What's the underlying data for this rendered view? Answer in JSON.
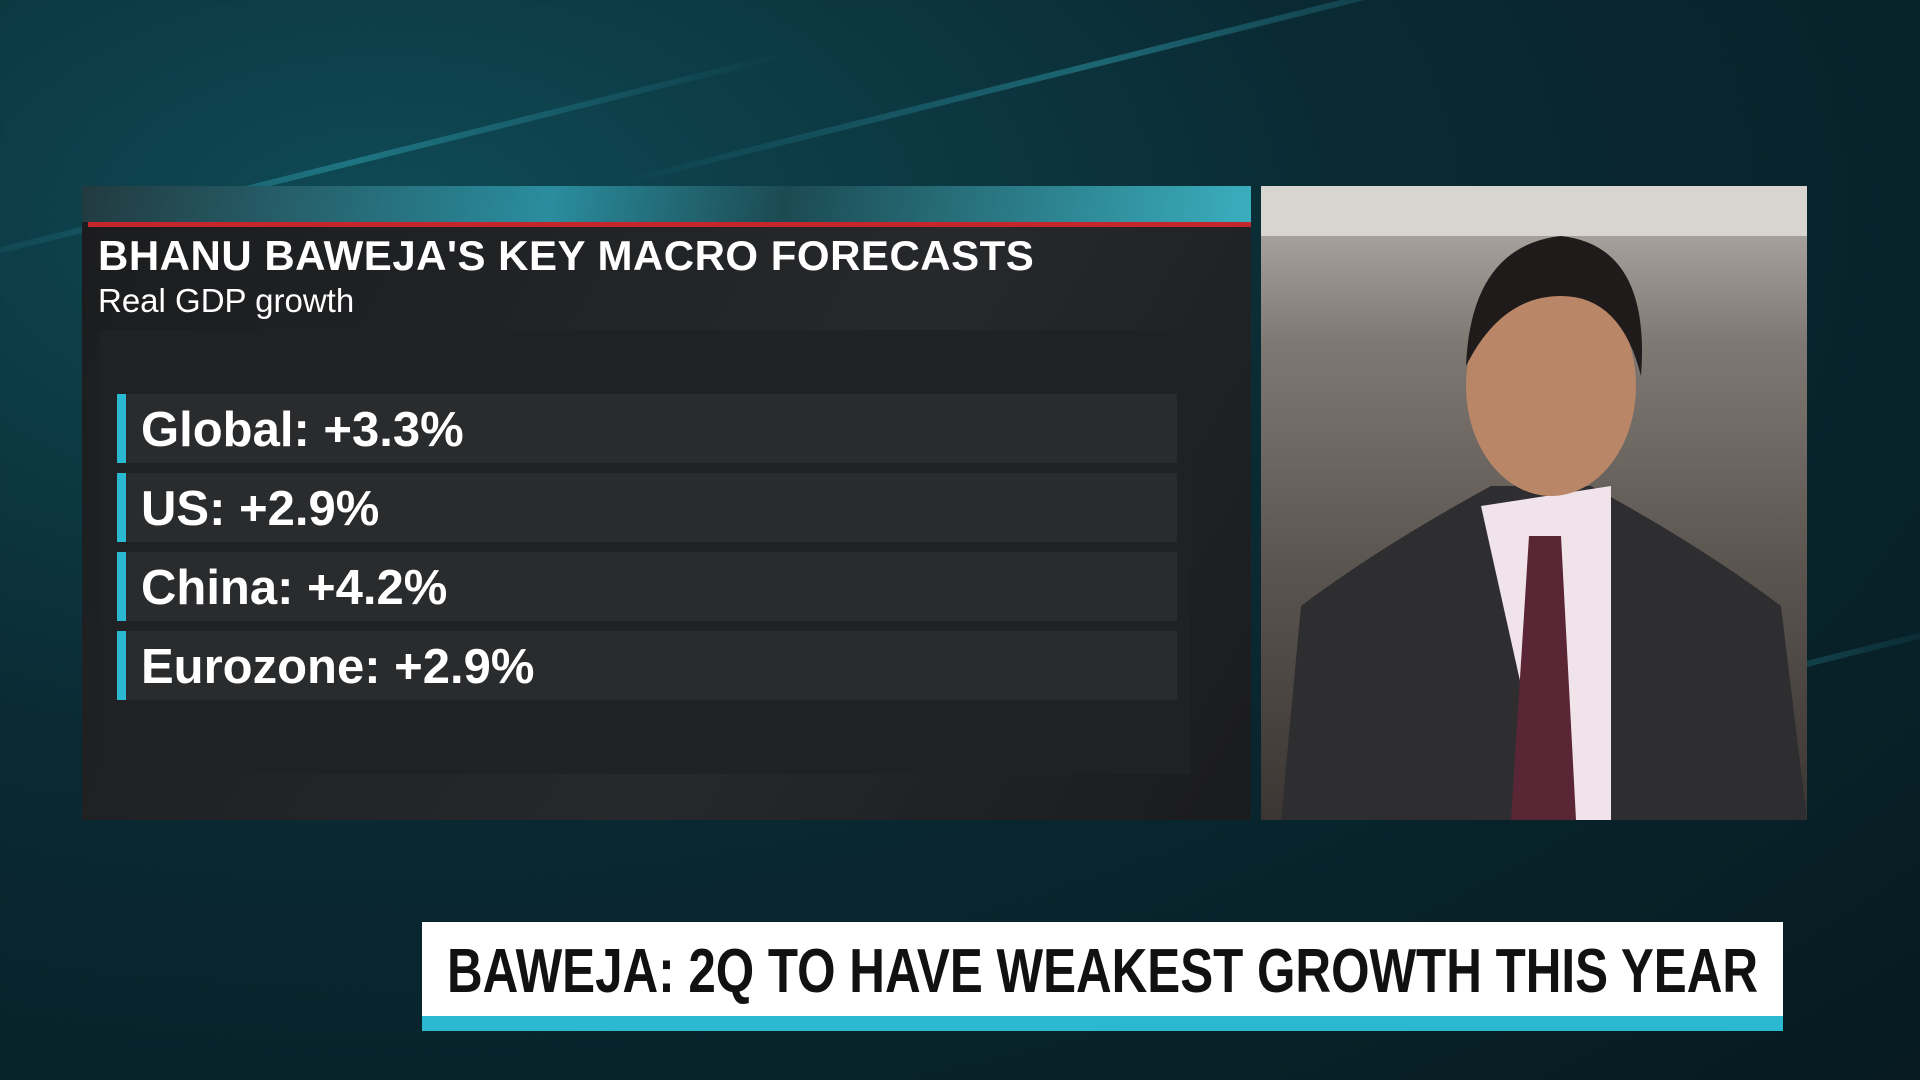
{
  "panel": {
    "title": "BHANU BAWEJA'S KEY MACRO FORECASTS",
    "subtitle": "Real GDP growth",
    "items": [
      "Global: +3.3%",
      "US: +2.9%",
      "China: +4.2%",
      "Eurozone: +2.9%"
    ]
  },
  "lower_third": {
    "headline": "BAWEJA: 2Q TO HAVE WEAKEST GROWTH THIS YEAR"
  }
}
